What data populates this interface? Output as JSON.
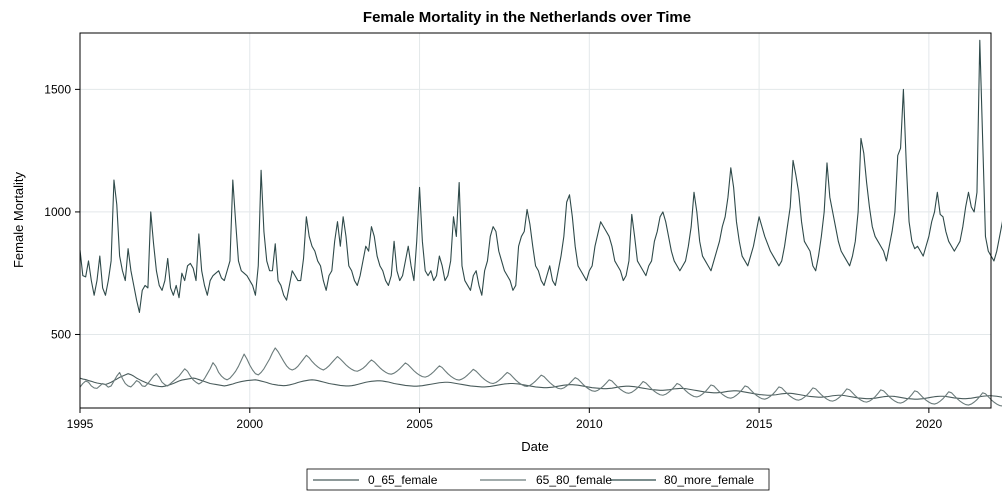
{
  "chart_data": {
    "type": "line",
    "title": "Female Mortality in the Netherlands over Time",
    "xlabel": "Date",
    "ylabel": "Female Mortality",
    "xlim": [
      1995,
      2021.83
    ],
    "ylim": [
      200,
      1730
    ],
    "x_ticks": [
      1995,
      2000,
      2005,
      2010,
      2015,
      2020
    ],
    "y_ticks": [
      500,
      1000,
      1500
    ],
    "grid": true,
    "legend_position": "bottom",
    "x_start": 1995.0,
    "x_step_months": 1,
    "series": [
      {
        "name": "0_65_female",
        "color": "#4a5c5c",
        "values": [
          322,
          318,
          316,
          312,
          309,
          305,
          302,
          300,
          298,
          296,
          300,
          305,
          312,
          318,
          325,
          330,
          335,
          340,
          336,
          330,
          322,
          316,
          310,
          305,
          300,
          296,
          292,
          290,
          288,
          287,
          289,
          292,
          296,
          300,
          305,
          310,
          314,
          316,
          318,
          320,
          322,
          320,
          316,
          312,
          308,
          304,
          300,
          298,
          296,
          294,
          292,
          290,
          292,
          295,
          298,
          302,
          305,
          308,
          310,
          312,
          313,
          314,
          315,
          313,
          310,
          307,
          304,
          300,
          297,
          295,
          293,
          292,
          291,
          292,
          294,
          297,
          300,
          304,
          307,
          310,
          312,
          314,
          315,
          314,
          312,
          309,
          306,
          303,
          300,
          298,
          296,
          294,
          292,
          291,
          290,
          290,
          291,
          293,
          296,
          299,
          302,
          305,
          307,
          309,
          310,
          311,
          311,
          310,
          308,
          306,
          303,
          300,
          298,
          296,
          294,
          292,
          291,
          290,
          289,
          289,
          290,
          291,
          293,
          295,
          297,
          299,
          301,
          303,
          304,
          305,
          305,
          304,
          302,
          300,
          298,
          296,
          294,
          292,
          290,
          289,
          288,
          287,
          286,
          286,
          287,
          288,
          290,
          292,
          294,
          296,
          298,
          299,
          300,
          300,
          299,
          298,
          296,
          294,
          292,
          290,
          288,
          286,
          285,
          284,
          283,
          283,
          284,
          285,
          287,
          289,
          291,
          293,
          294,
          295,
          295,
          294,
          293,
          291,
          289,
          287,
          285,
          283,
          282,
          281,
          280,
          279,
          279,
          280,
          281,
          283,
          285,
          287,
          288,
          289,
          289,
          288,
          287,
          285,
          283,
          281,
          279,
          277,
          275,
          274,
          273,
          272,
          272,
          273,
          274,
          276,
          278,
          279,
          280,
          280,
          279,
          277,
          275,
          273,
          271,
          269,
          267,
          265,
          264,
          263,
          262,
          262,
          263,
          264,
          266,
          268,
          269,
          270,
          270,
          269,
          267,
          265,
          263,
          261,
          259,
          257,
          255,
          254,
          253,
          252,
          252,
          253,
          254,
          256,
          258,
          259,
          260,
          260,
          259,
          257,
          255,
          253,
          251,
          249,
          247,
          246,
          245,
          244,
          244,
          245,
          246,
          248,
          250,
          251,
          252,
          252,
          251,
          249,
          247,
          245,
          243,
          241,
          240,
          239,
          238,
          238,
          239,
          240,
          242,
          244,
          246,
          247,
          248,
          248,
          247,
          245,
          243,
          241,
          239,
          238,
          237,
          236,
          236,
          237,
          238,
          240,
          242,
          244,
          246,
          247,
          248,
          248,
          247,
          245,
          243,
          241,
          240,
          239,
          238,
          238,
          239,
          240,
          242,
          244,
          246,
          248,
          249,
          250,
          250,
          249,
          248,
          246,
          244,
          242,
          240,
          239,
          238,
          238,
          238,
          239,
          241,
          243,
          245,
          247,
          249,
          250,
          251,
          251,
          250,
          248,
          246,
          244,
          242,
          241,
          240,
          240,
          241,
          242,
          260,
          285,
          300,
          278,
          250,
          245,
          243,
          241,
          240,
          240,
          241,
          243,
          246,
          260,
          290,
          305,
          280,
          252,
          246,
          243,
          241,
          240,
          240
        ]
      },
      {
        "name": "65_80_female",
        "color": "#6b7b7b",
        "values": [
          285,
          300,
          310,
          305,
          290,
          282,
          280,
          290,
          300,
          295,
          285,
          290,
          310,
          330,
          345,
          320,
          300,
          290,
          286,
          298,
          312,
          305,
          290,
          288,
          300,
          315,
          330,
          340,
          325,
          305,
          295,
          290,
          300,
          310,
          320,
          330,
          345,
          360,
          350,
          330,
          315,
          305,
          298,
          305,
          320,
          340,
          360,
          385,
          370,
          345,
          330,
          320,
          315,
          322,
          335,
          350,
          370,
          395,
          420,
          400,
          375,
          355,
          340,
          335,
          345,
          360,
          380,
          400,
          425,
          445,
          430,
          410,
          390,
          372,
          360,
          355,
          360,
          370,
          385,
          400,
          415,
          405,
          390,
          378,
          368,
          360,
          355,
          362,
          372,
          385,
          398,
          410,
          400,
          388,
          376,
          366,
          358,
          352,
          350,
          355,
          362,
          372,
          385,
          396,
          388,
          376,
          364,
          354,
          346,
          340,
          338,
          342,
          350,
          360,
          372,
          384,
          376,
          364,
          352,
          342,
          334,
          328,
          326,
          330,
          338,
          348,
          360,
          372,
          365,
          352,
          340,
          330,
          322,
          316,
          314,
          318,
          325,
          335,
          346,
          358,
          350,
          338,
          326,
          316,
          308,
          302,
          300,
          304,
          312,
          322,
          334,
          345,
          338,
          326,
          314,
          304,
          296,
          290,
          288,
          292,
          300,
          310,
          322,
          334,
          328,
          316,
          304,
          294,
          286,
          280,
          278,
          282,
          290,
          300,
          312,
          324,
          318,
          306,
          294,
          284,
          276,
          270,
          268,
          272,
          280,
          290,
          302,
          315,
          310,
          298,
          286,
          276,
          268,
          262,
          260,
          264,
          272,
          282,
          294,
          308,
          302,
          290,
          278,
          268,
          260,
          254,
          252,
          256,
          264,
          274,
          286,
          300,
          295,
          283,
          271,
          261,
          253,
          247,
          245,
          249,
          257,
          267,
          280,
          294,
          290,
          278,
          266,
          256,
          248,
          242,
          240,
          244,
          252,
          262,
          275,
          290,
          286,
          274,
          262,
          252,
          244,
          238,
          236,
          240,
          248,
          258,
          271,
          286,
          282,
          270,
          258,
          248,
          240,
          234,
          232,
          236,
          244,
          254,
          267,
          282,
          278,
          266,
          254,
          244,
          236,
          230,
          228,
          232,
          240,
          250,
          263,
          278,
          274,
          262,
          250,
          240,
          232,
          226,
          224,
          228,
          236,
          246,
          259,
          274,
          270,
          258,
          246,
          236,
          228,
          222,
          220,
          224,
          232,
          242,
          255,
          270,
          266,
          254,
          242,
          232,
          224,
          218,
          216,
          220,
          228,
          238,
          251,
          266,
          262,
          250,
          238,
          228,
          220,
          214,
          212,
          216,
          224,
          234,
          247,
          262,
          258,
          246,
          234,
          224,
          216,
          210,
          208,
          212,
          220,
          230,
          243,
          258,
          254,
          242,
          230,
          220,
          212,
          206,
          204,
          208,
          216,
          226,
          260,
          300,
          280,
          250,
          232,
          222,
          214,
          208,
          206,
          210,
          220,
          240,
          280,
          320,
          300,
          262,
          240,
          230,
          225,
          228,
          232
        ]
      },
      {
        "name": "80_more_female",
        "color": "#2f4a4a",
        "values": [
          845,
          740,
          735,
          800,
          720,
          660,
          720,
          820,
          690,
          660,
          720,
          800,
          1130,
          1030,
          820,
          760,
          720,
          850,
          760,
          700,
          640,
          590,
          680,
          700,
          690,
          1000,
          870,
          760,
          700,
          680,
          720,
          810,
          690,
          660,
          700,
          650,
          750,
          720,
          780,
          790,
          770,
          720,
          910,
          760,
          700,
          660,
          720,
          740,
          750,
          760,
          730,
          720,
          760,
          800,
          1130,
          960,
          800,
          760,
          750,
          740,
          720,
          700,
          660,
          780,
          1170,
          920,
          800,
          760,
          760,
          870,
          720,
          700,
          660,
          640,
          700,
          760,
          740,
          720,
          720,
          810,
          980,
          900,
          860,
          840,
          800,
          780,
          720,
          680,
          740,
          760,
          880,
          960,
          860,
          980,
          900,
          780,
          760,
          720,
          700,
          740,
          800,
          860,
          840,
          940,
          900,
          820,
          780,
          760,
          720,
          700,
          740,
          880,
          760,
          720,
          740,
          800,
          860,
          780,
          720,
          880,
          1100,
          880,
          760,
          740,
          760,
          720,
          740,
          820,
          780,
          720,
          740,
          800,
          980,
          900,
          1120,
          780,
          720,
          700,
          680,
          740,
          760,
          700,
          660,
          760,
          800,
          900,
          940,
          920,
          840,
          800,
          760,
          740,
          720,
          680,
          700,
          860,
          900,
          920,
          1010,
          950,
          860,
          780,
          760,
          720,
          700,
          740,
          780,
          720,
          700,
          760,
          820,
          900,
          1040,
          1070,
          980,
          860,
          780,
          760,
          740,
          720,
          760,
          780,
          860,
          910,
          960,
          940,
          920,
          900,
          860,
          800,
          780,
          760,
          720,
          740,
          800,
          990,
          900,
          800,
          780,
          760,
          740,
          780,
          800,
          880,
          920,
          980,
          1000,
          960,
          900,
          840,
          800,
          780,
          760,
          780,
          800,
          860,
          940,
          1080,
          1000,
          880,
          820,
          800,
          780,
          760,
          800,
          840,
          880,
          940,
          980,
          1060,
          1180,
          1100,
          960,
          880,
          820,
          800,
          780,
          820,
          860,
          920,
          980,
          940,
          900,
          870,
          840,
          820,
          800,
          780,
          800,
          860,
          940,
          1020,
          1210,
          1150,
          1080,
          960,
          880,
          860,
          840,
          780,
          760,
          820,
          900,
          1000,
          1200,
          1060,
          1000,
          940,
          880,
          840,
          820,
          800,
          780,
          820,
          880,
          1000,
          1300,
          1240,
          1120,
          1020,
          940,
          900,
          880,
          860,
          840,
          800,
          860,
          920,
          1000,
          1230,
          1260,
          1500,
          1200,
          960,
          880,
          850,
          860,
          840,
          820,
          860,
          900,
          960,
          1000,
          1080,
          990,
          980,
          920,
          880,
          860,
          840,
          860,
          880,
          940,
          1020,
          1080,
          1020,
          1000,
          1080,
          1700,
          1300,
          900,
          840,
          820,
          800,
          840,
          900,
          960,
          1120,
          1110,
          1540,
          1100,
          960,
          900,
          890,
          890
        ]
      }
    ]
  }
}
